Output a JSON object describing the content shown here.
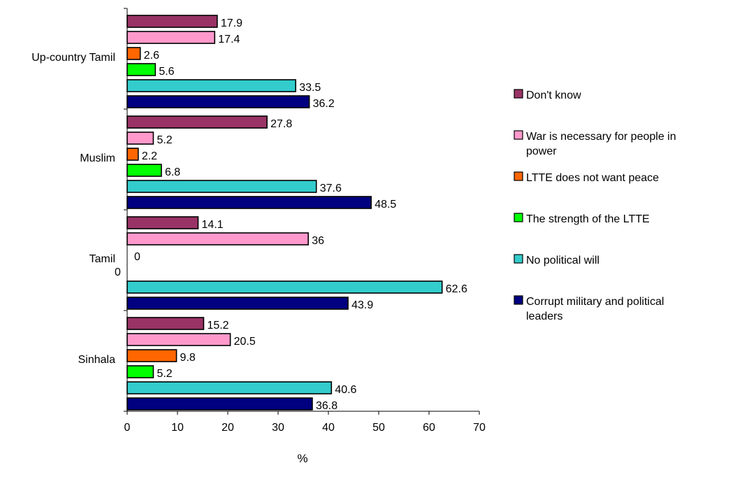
{
  "chart_data": {
    "type": "bar",
    "orientation": "horizontal",
    "title": "",
    "xlabel": "%",
    "ylabel": "",
    "xlim": [
      0,
      70
    ],
    "xticks": [
      0,
      10,
      20,
      30,
      40,
      50,
      60,
      70
    ],
    "grid": false,
    "legend_position": "right",
    "categories": [
      "Up-country Tamil",
      "Muslim",
      "Tamil",
      "Sinhala"
    ],
    "series": [
      {
        "name": "Don't know",
        "color": "#993366",
        "values": [
          17.9,
          27.8,
          14.1,
          15.2
        ],
        "labels": [
          "17.9",
          "27.8",
          "14.1",
          "15.2"
        ]
      },
      {
        "name": "War is necessary for people in power",
        "color": "#FF99CC",
        "values": [
          17.4,
          5.2,
          36,
          20.5
        ],
        "labels": [
          "17.4",
          "5.2",
          "36",
          "20.5"
        ]
      },
      {
        "name": "LTTE does not want peace",
        "color": "#FF6600",
        "values": [
          2.6,
          2.2,
          0,
          9.8
        ],
        "labels": [
          "2.6",
          "2.2",
          "0",
          "9.8"
        ]
      },
      {
        "name": "The strength of the LTTE",
        "color": "#00FF00",
        "values": [
          5.6,
          6.8,
          null,
          5.2
        ],
        "labels": [
          "5.6",
          "6.8",
          "0",
          "5.2"
        ]
      },
      {
        "name": "No political will",
        "color": "#33CCCC",
        "values": [
          33.5,
          37.6,
          62.6,
          40.6
        ],
        "labels": [
          "33.5",
          "37.6",
          "62.6",
          "40.6"
        ]
      },
      {
        "name": "Corrupt military and political leaders",
        "color": "#000080",
        "values": [
          36.2,
          48.5,
          43.9,
          36.8
        ],
        "labels": [
          "36.2",
          "48.5",
          "43.9",
          "36.8"
        ]
      }
    ]
  }
}
